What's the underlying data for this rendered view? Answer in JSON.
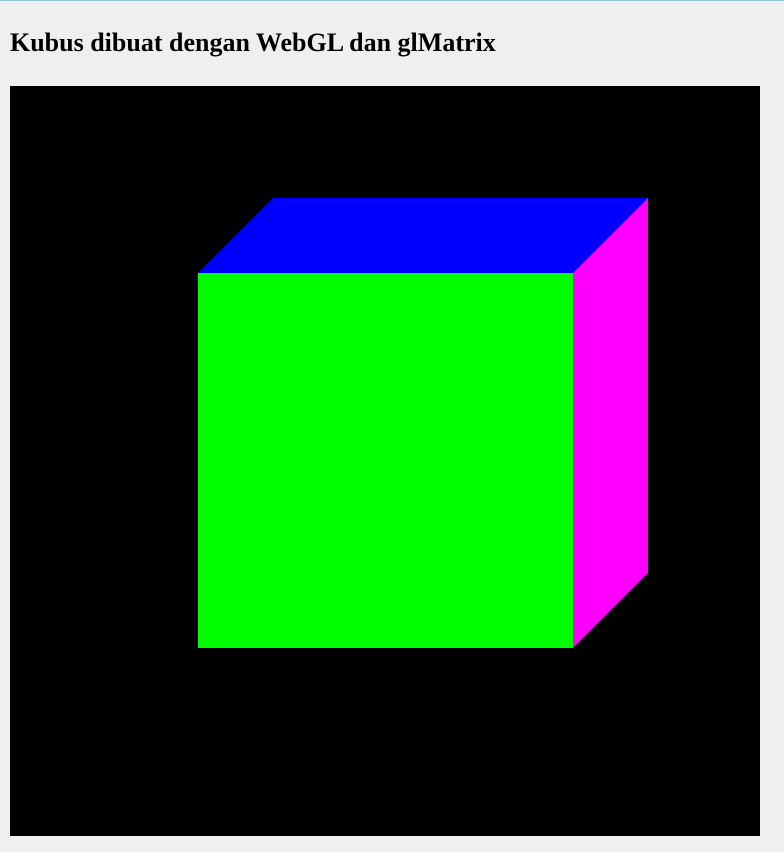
{
  "page": {
    "title": "Kubus dibuat dengan WebGL dan glMatrix"
  },
  "canvas": {
    "background": "#000000",
    "faces": {
      "front": "#00ff00",
      "top": "#0000ff",
      "right": "#ff00ff"
    }
  }
}
